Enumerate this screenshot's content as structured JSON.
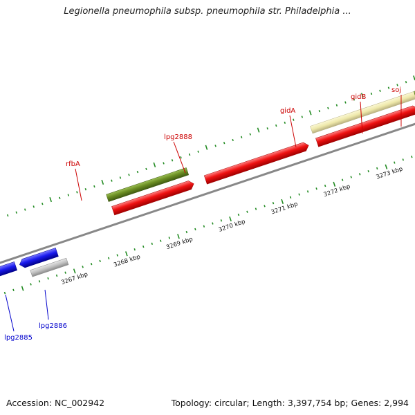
{
  "title": "Legionella pneumophila subsp. pneumophila str. Philadelphia ...",
  "footer": {
    "accession": "Accession: NC_002942",
    "summary": "Topology: circular; Length: 3,397,754 bp; Genes: 2,994"
  },
  "colors": {
    "cds": "#ee1111",
    "blue_feature": "#1a1aee",
    "olive_feature": "#6b8e23",
    "pale_feature": "#eee8aa",
    "gray_feature": "#c0c0c0",
    "backbone": "#888888",
    "tick": "#228b22",
    "red_label": "#cc0000",
    "blue_label": "#0000cc"
  },
  "kbp_labels": [
    "3267 kbp",
    "3268 kbp",
    "3269 kbp",
    "3270 kbp",
    "3271 kbp",
    "3272 kbp",
    "3273 kbp"
  ],
  "gene_labels": [
    {
      "name": "lpg2885",
      "color": "blue"
    },
    {
      "name": "lpg2886",
      "color": "blue"
    },
    {
      "name": "rfbA",
      "color": "red"
    },
    {
      "name": "lpg2888",
      "color": "red"
    },
    {
      "name": "gidA",
      "color": "red"
    },
    {
      "name": "gidB",
      "color": "red"
    },
    {
      "name": "soj",
      "color": "red"
    }
  ]
}
